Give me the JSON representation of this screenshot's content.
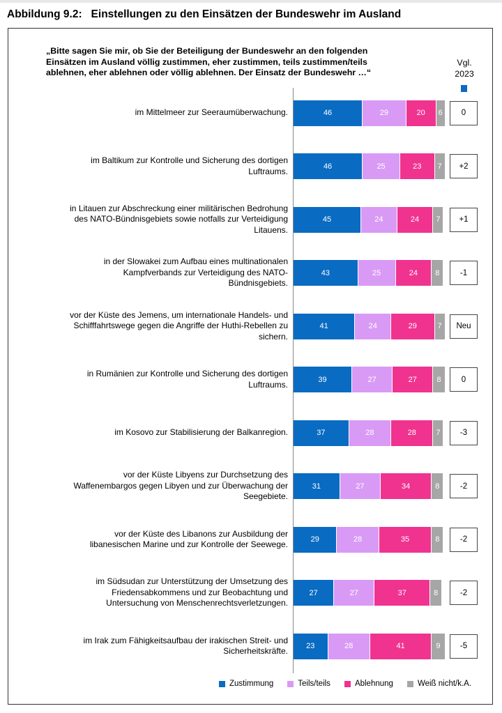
{
  "title": "Abbildung 9.2:   Einstellungen zu den Einsätzen der Bundeswehr im Ausland",
  "chart_data": {
    "type": "bar",
    "orientation": "horizontal-stacked",
    "question": "„Bitte sagen Sie mir, ob Sie der Beteiligung der Bundeswehr an den folgenden Einsätzen im Ausland völlig zustimmen, eher zustimmen, teils zustimmen/teils ablehnen, eher ablehnen oder völlig ablehnen. Der Einsatz der Bundeswehr …“",
    "comparison_header": "Vgl. 2023",
    "comparison_color": "#0a6bc2",
    "categories": [
      "im Mittelmeer zur Seeraumüberwachung.",
      "im Baltikum zur Kontrolle und Sicherung des dortigen Luftraums.",
      "in Litauen zur Abschreckung einer militärischen Bedrohung des NATO-Bündnisgebiets sowie notfalls zur Verteidigung Litauens.",
      "in der Slowakei zum Aufbau eines multinationalen Kampfverbands zur Verteidigung des NATO-Bündnisgebiets.",
      "vor der Küste des Jemens, um internationale Handels- und Schifffahrtswege gegen die Angriffe der Huthi-Rebellen zu sichern.",
      "in Rumänien zur Kontrolle und Sicherung des dortigen Luftraums.",
      "im Kosovo zur Stabilisierung der Balkanregion.",
      "vor der Küste Libyens zur Durchsetzung des Waffenembargos gegen Libyen und zur Überwachung der Seegebiete.",
      "vor der Küste des Libanons zur Ausbildung der libanesischen Marine und zur Kontrolle der Seewege.",
      "im Südsudan zur Unterstützung der Umsetzung des Friedensabkommens und zur Beobachtung und Untersuchung von Menschenrechtsverletzungen.",
      "im Irak zum Fähigkeitsaufbau der irakischen Streit- und Sicherheitskräfte."
    ],
    "series": [
      {
        "name": "Zustimmung",
        "color": "#0a6bc2",
        "values": [
          46,
          46,
          45,
          43,
          41,
          39,
          37,
          31,
          29,
          27,
          23
        ]
      },
      {
        "name": "Teils/teils",
        "color": "#d99af5",
        "values": [
          29,
          25,
          24,
          25,
          24,
          27,
          28,
          27,
          28,
          27,
          28
        ]
      },
      {
        "name": "Ablehnung",
        "color": "#f0338f",
        "values": [
          20,
          23,
          24,
          24,
          29,
          27,
          28,
          34,
          35,
          37,
          41
        ]
      },
      {
        "name": "Weiß nicht/k.A.",
        "color": "#a6a6a6",
        "values": [
          6,
          7,
          7,
          8,
          7,
          8,
          7,
          8,
          8,
          8,
          9
        ]
      }
    ],
    "comparison": [
      "0",
      "+2",
      "+1",
      "-1",
      "Neu",
      "0",
      "-3",
      "-2",
      "-2",
      "-2",
      "-5"
    ],
    "xlim": [
      0,
      101
    ],
    "grid": false,
    "legend_position": "bottom-right"
  }
}
